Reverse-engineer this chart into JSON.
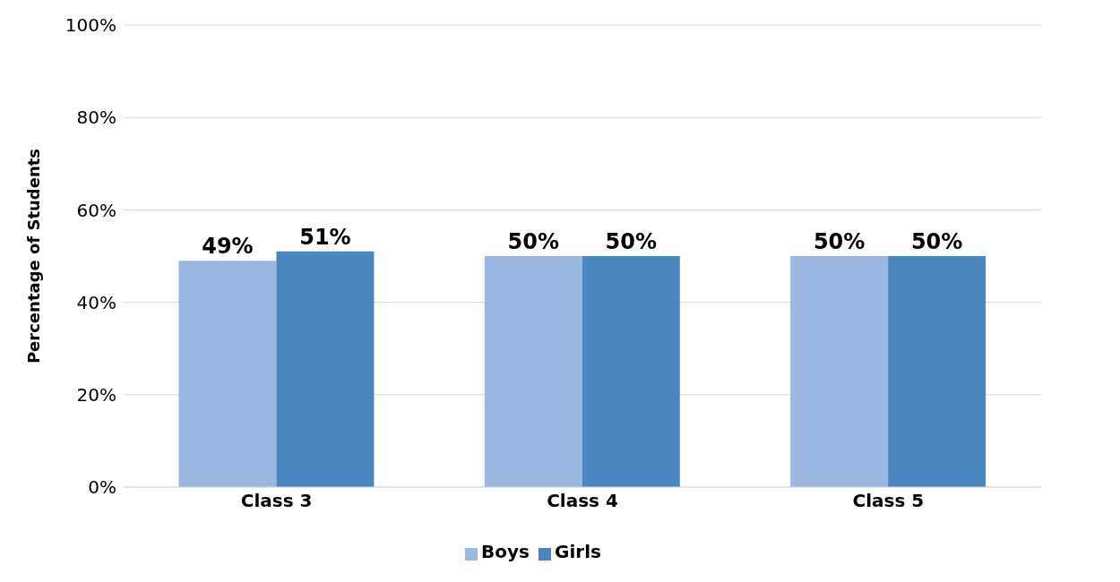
{
  "chart_data": {
    "type": "bar",
    "ylabel": "Percentage of Students",
    "categories": [
      "Class 3",
      "Class 4",
      "Class 5"
    ],
    "series": [
      {
        "name": "Boys",
        "color": "#9ab8e0",
        "values": [
          49,
          50,
          50
        ],
        "value_labels": [
          "49%",
          "50%",
          "50%"
        ]
      },
      {
        "name": "Girls",
        "color": "#4a86c0",
        "values": [
          51,
          50,
          50
        ],
        "value_labels": [
          "51%",
          "50%",
          "50%"
        ]
      }
    ],
    "ylim": [
      0,
      100
    ],
    "yticks": [
      {
        "value": 0,
        "label": "0%"
      },
      {
        "value": 20,
        "label": "20%"
      },
      {
        "value": 40,
        "label": "40%"
      },
      {
        "value": 60,
        "label": "60%"
      },
      {
        "value": 80,
        "label": "80%"
      },
      {
        "value": 100,
        "label": "100%"
      }
    ],
    "grid": "y",
    "legend": "bottom"
  }
}
